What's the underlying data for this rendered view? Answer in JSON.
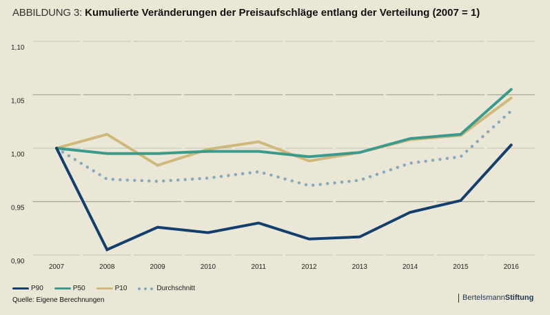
{
  "title": {
    "prefix": "ABBILDUNG 3:",
    "text": "Kumulierte Veränderungen der Preisaufschläge entlang der Verteilung (2007 = 1)"
  },
  "chart_data": {
    "type": "line",
    "title": "Kumulierte Veränderungen der Preisaufschläge entlang der Verteilung (2007 = 1)",
    "xlabel": "",
    "ylabel": "",
    "categories": [
      "2007",
      "2008",
      "2009",
      "2010",
      "2011",
      "2012",
      "2013",
      "2014",
      "2015",
      "2016"
    ],
    "ylim": [
      0.9,
      1.1
    ],
    "yticks": [
      0.9,
      0.95,
      1.0,
      1.05,
      1.1
    ],
    "ytick_labels": [
      "0,90",
      "0,95",
      "1,00",
      "1,05",
      "1,10"
    ],
    "grid": true,
    "legend_position": "bottom-left",
    "series": [
      {
        "name": "P90",
        "color": "#123f6e",
        "style": "solid",
        "values": [
          1.0,
          0.905,
          0.926,
          0.921,
          0.93,
          0.915,
          0.917,
          0.94,
          0.951,
          1.003
        ]
      },
      {
        "name": "P50",
        "color": "#3a9a8c",
        "style": "solid",
        "values": [
          1.0,
          0.995,
          0.995,
          0.997,
          0.997,
          0.992,
          0.996,
          1.009,
          1.013,
          1.055
        ]
      },
      {
        "name": "P10",
        "color": "#cfb97a",
        "style": "solid",
        "values": [
          1.0,
          1.013,
          0.984,
          0.999,
          1.006,
          0.988,
          0.996,
          1.008,
          1.012,
          1.047
        ]
      },
      {
        "name": "Durchschnitt",
        "color": "#86a9bd",
        "style": "dotted",
        "values": [
          1.0,
          0.971,
          0.969,
          0.972,
          0.978,
          0.965,
          0.97,
          0.986,
          0.992,
          1.035
        ]
      }
    ]
  },
  "source": "Quelle: Eigene Berechnungen",
  "brand": {
    "part1": "Bertelsmann",
    "part2": "Stiftung"
  }
}
